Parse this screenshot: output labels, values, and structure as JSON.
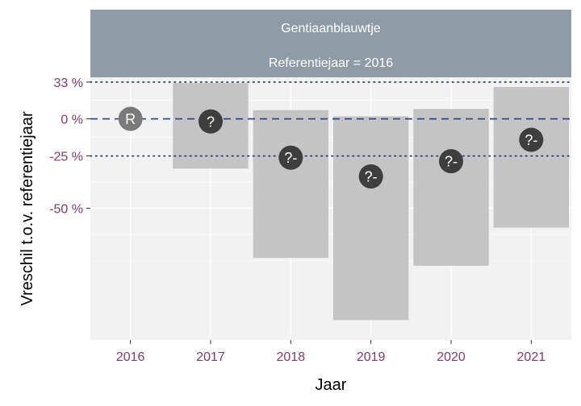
{
  "chart_data": {
    "type": "bar",
    "facet": {
      "species": "Gentiaanblauwtje",
      "reference": "Referentiejaar = 2016"
    },
    "xlabel": "Jaar",
    "ylabel": "Vreschil t.o.v. referentiejaar",
    "categories": [
      "2016",
      "2017",
      "2018",
      "2019",
      "2020",
      "2021"
    ],
    "y_log_ratio_ticks": [
      {
        "label": "33 %",
        "value": 0.33
      },
      {
        "label": "0 %",
        "value": 0
      },
      {
        "label": "-25 %",
        "value": -0.25
      },
      {
        "label": "-50 %",
        "value": -0.5
      }
    ],
    "ylim_percent": [
      -82,
      38
    ],
    "reference_lines": [
      {
        "value": 0.33,
        "style": "dotted"
      },
      {
        "value": 0,
        "style": "dashed"
      },
      {
        "value": -0.25,
        "style": "dotted"
      }
    ],
    "series": [
      {
        "estimate_percent": [
          0,
          -2,
          -26,
          -36,
          -28,
          -15
        ],
        "ci_lower_percent": [
          null,
          -32,
          -66,
          -79,
          -68,
          -57
        ],
        "ci_upper_percent": [
          null,
          32,
          7,
          2,
          8,
          28
        ],
        "markers": [
          "R",
          "?",
          "?-",
          "?-",
          "?-",
          "?-"
        ]
      }
    ],
    "colors": {
      "strip": "#8e9ca6",
      "panel": "#f2f2f2",
      "grid": "#ffffff",
      "ci_band": "#c4c4c4",
      "ref_marker": "#7a7a7a",
      "marker": "#3e3e3e",
      "reference_line": "#2e3d7a",
      "tick_text": "#7b3d6b"
    },
    "grid": true
  }
}
